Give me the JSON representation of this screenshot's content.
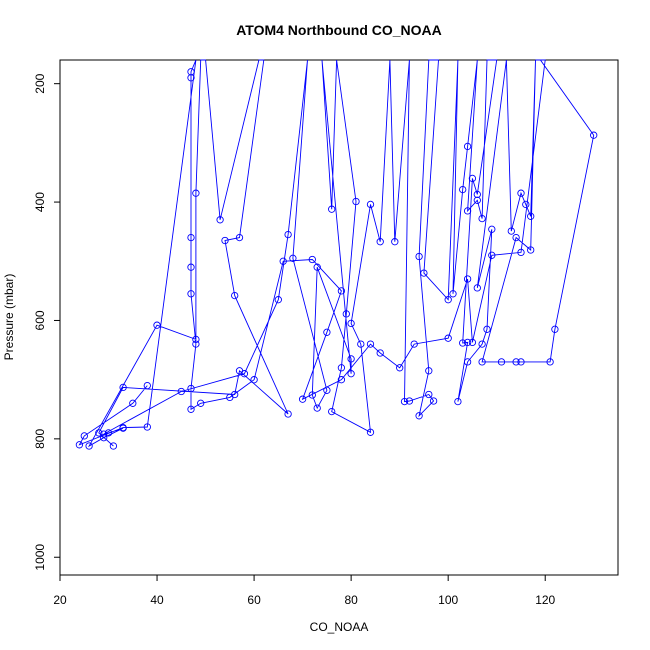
{
  "chart_data": {
    "type": "line",
    "title": "ATOM4 Northbound CO_NOAA",
    "xlabel": "CO_NOAA",
    "ylabel": "Pressure (mbar)",
    "xlim": [
      20,
      135
    ],
    "ylim": [
      1030,
      160
    ],
    "y_reversed": true,
    "x_ticks": [
      20,
      40,
      60,
      80,
      100,
      120
    ],
    "y_ticks": [
      200,
      400,
      600,
      800,
      1000
    ],
    "grid": false,
    "legend": "none",
    "series_color": "#0000ff",
    "marker": "open-circle",
    "series": [
      {
        "points": [
          [
            31,
            812
          ],
          [
            28,
            790
          ],
          [
            33,
            713
          ],
          [
            56,
            725
          ],
          [
            57,
            685
          ],
          [
            67,
            758
          ],
          [
            56,
            558
          ],
          [
            54,
            465
          ],
          [
            57,
            460
          ],
          [
            62,
            160
          ],
          [
            61,
            160
          ],
          [
            53,
            430
          ],
          [
            50,
            160
          ],
          [
            49,
            160
          ],
          [
            48,
            385
          ],
          [
            48,
            632
          ],
          [
            40,
            608
          ],
          [
            26,
            812
          ],
          [
            29,
            798
          ],
          [
            33,
            782
          ],
          [
            30,
            790
          ],
          [
            29,
            792
          ],
          [
            45,
            720
          ],
          [
            58,
            690
          ],
          [
            65,
            565
          ],
          [
            67,
            455
          ],
          [
            71,
            160
          ],
          [
            68,
            495
          ],
          [
            75,
            718
          ],
          [
            73,
            748
          ],
          [
            72,
            726
          ],
          [
            73,
            510
          ],
          [
            80,
            665
          ],
          [
            80,
            690
          ],
          [
            74,
            160
          ],
          [
            76,
            412
          ],
          [
            77,
            160
          ],
          [
            81,
            399
          ],
          [
            79,
            589
          ],
          [
            78,
            680
          ],
          [
            76,
            754
          ],
          [
            84,
            789
          ],
          [
            82,
            640
          ],
          [
            80,
            605
          ],
          [
            84,
            404
          ],
          [
            86,
            467
          ],
          [
            88,
            160
          ],
          [
            89,
            467
          ],
          [
            92,
            160
          ],
          [
            91,
            737
          ],
          [
            92,
            736
          ],
          [
            96,
            725
          ],
          [
            97,
            736
          ],
          [
            94,
            761
          ],
          [
            96,
            685
          ],
          [
            94,
            492
          ],
          [
            96,
            160
          ],
          [
            98,
            160
          ],
          [
            95,
            520
          ],
          [
            100,
            565
          ],
          [
            102,
            160
          ],
          [
            101,
            555
          ],
          [
            103,
            379
          ],
          [
            104,
            306
          ],
          [
            106,
            160
          ],
          [
            104,
            415
          ],
          [
            106,
            397
          ],
          [
            107,
            428
          ],
          [
            108,
            160
          ],
          [
            110,
            160
          ],
          [
            106,
            387
          ],
          [
            105,
            360
          ],
          [
            103,
            638
          ],
          [
            104,
            637
          ],
          [
            102,
            737
          ],
          [
            104,
            670
          ],
          [
            107,
            640
          ],
          [
            108,
            615
          ],
          [
            109,
            446
          ],
          [
            106,
            545
          ],
          [
            112,
            160
          ],
          [
            113,
            449
          ],
          [
            115,
            385
          ],
          [
            116,
            404
          ],
          [
            117,
            424
          ],
          [
            118,
            160
          ],
          [
            117,
            481
          ],
          [
            114,
            460
          ],
          [
            107,
            670
          ],
          [
            111,
            670
          ],
          [
            114,
            670
          ],
          [
            115,
            670
          ],
          [
            121,
            670
          ],
          [
            122,
            615
          ],
          [
            130,
            287
          ],
          [
            119,
            160
          ],
          [
            118,
            160
          ],
          [
            120,
            160
          ],
          [
            115,
            485
          ],
          [
            109,
            490
          ],
          [
            105,
            637
          ],
          [
            104,
            530
          ],
          [
            100,
            630
          ],
          [
            93,
            640
          ],
          [
            90,
            680
          ],
          [
            86,
            655
          ],
          [
            84,
            640
          ],
          [
            78,
            700
          ],
          [
            70,
            733
          ],
          [
            75,
            620
          ],
          [
            78,
            550
          ],
          [
            72,
            497
          ],
          [
            66,
            500
          ],
          [
            60,
            700
          ],
          [
            55,
            730
          ],
          [
            49,
            740
          ],
          [
            47,
            750
          ],
          [
            47,
            715
          ],
          [
            48,
            640
          ],
          [
            47,
            555
          ],
          [
            47,
            510
          ],
          [
            47,
            460
          ],
          [
            47,
            190
          ],
          [
            47,
            180
          ],
          [
            48,
            160
          ],
          [
            38,
            780
          ],
          [
            33,
            781
          ],
          [
            24,
            810
          ],
          [
            25,
            795
          ],
          [
            35,
            740
          ],
          [
            38,
            710
          ]
        ]
      }
    ]
  }
}
